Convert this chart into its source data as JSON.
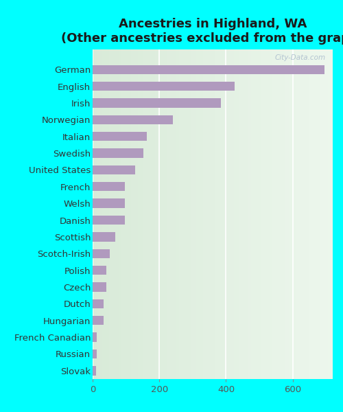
{
  "title_line1": "Ancestries in Highland, WA",
  "title_line2": "(Other ancestries excluded from the graph)",
  "categories": [
    "German",
    "English",
    "Irish",
    "Norwegian",
    "Italian",
    "Swedish",
    "United States",
    "French",
    "Welsh",
    "Danish",
    "Scottish",
    "Scotch-Irish",
    "Polish",
    "Czech",
    "Dutch",
    "Hungarian",
    "French Canadian",
    "Russian",
    "Slovak"
  ],
  "values": [
    695,
    425,
    385,
    240,
    162,
    152,
    128,
    97,
    97,
    97,
    68,
    52,
    42,
    42,
    32,
    32,
    13,
    12,
    11
  ],
  "bar_color": "#b09abe",
  "background_color": "#00ffff",
  "plot_bg_color_top": "#d6ecd6",
  "plot_bg_color_bottom": "#e8f4e8",
  "xlim": [
    0,
    720
  ],
  "xticks": [
    0,
    200,
    400,
    600
  ],
  "watermark": "City-Data.com",
  "title_fontsize": 13,
  "label_fontsize": 9.5,
  "tick_fontsize": 9.5
}
